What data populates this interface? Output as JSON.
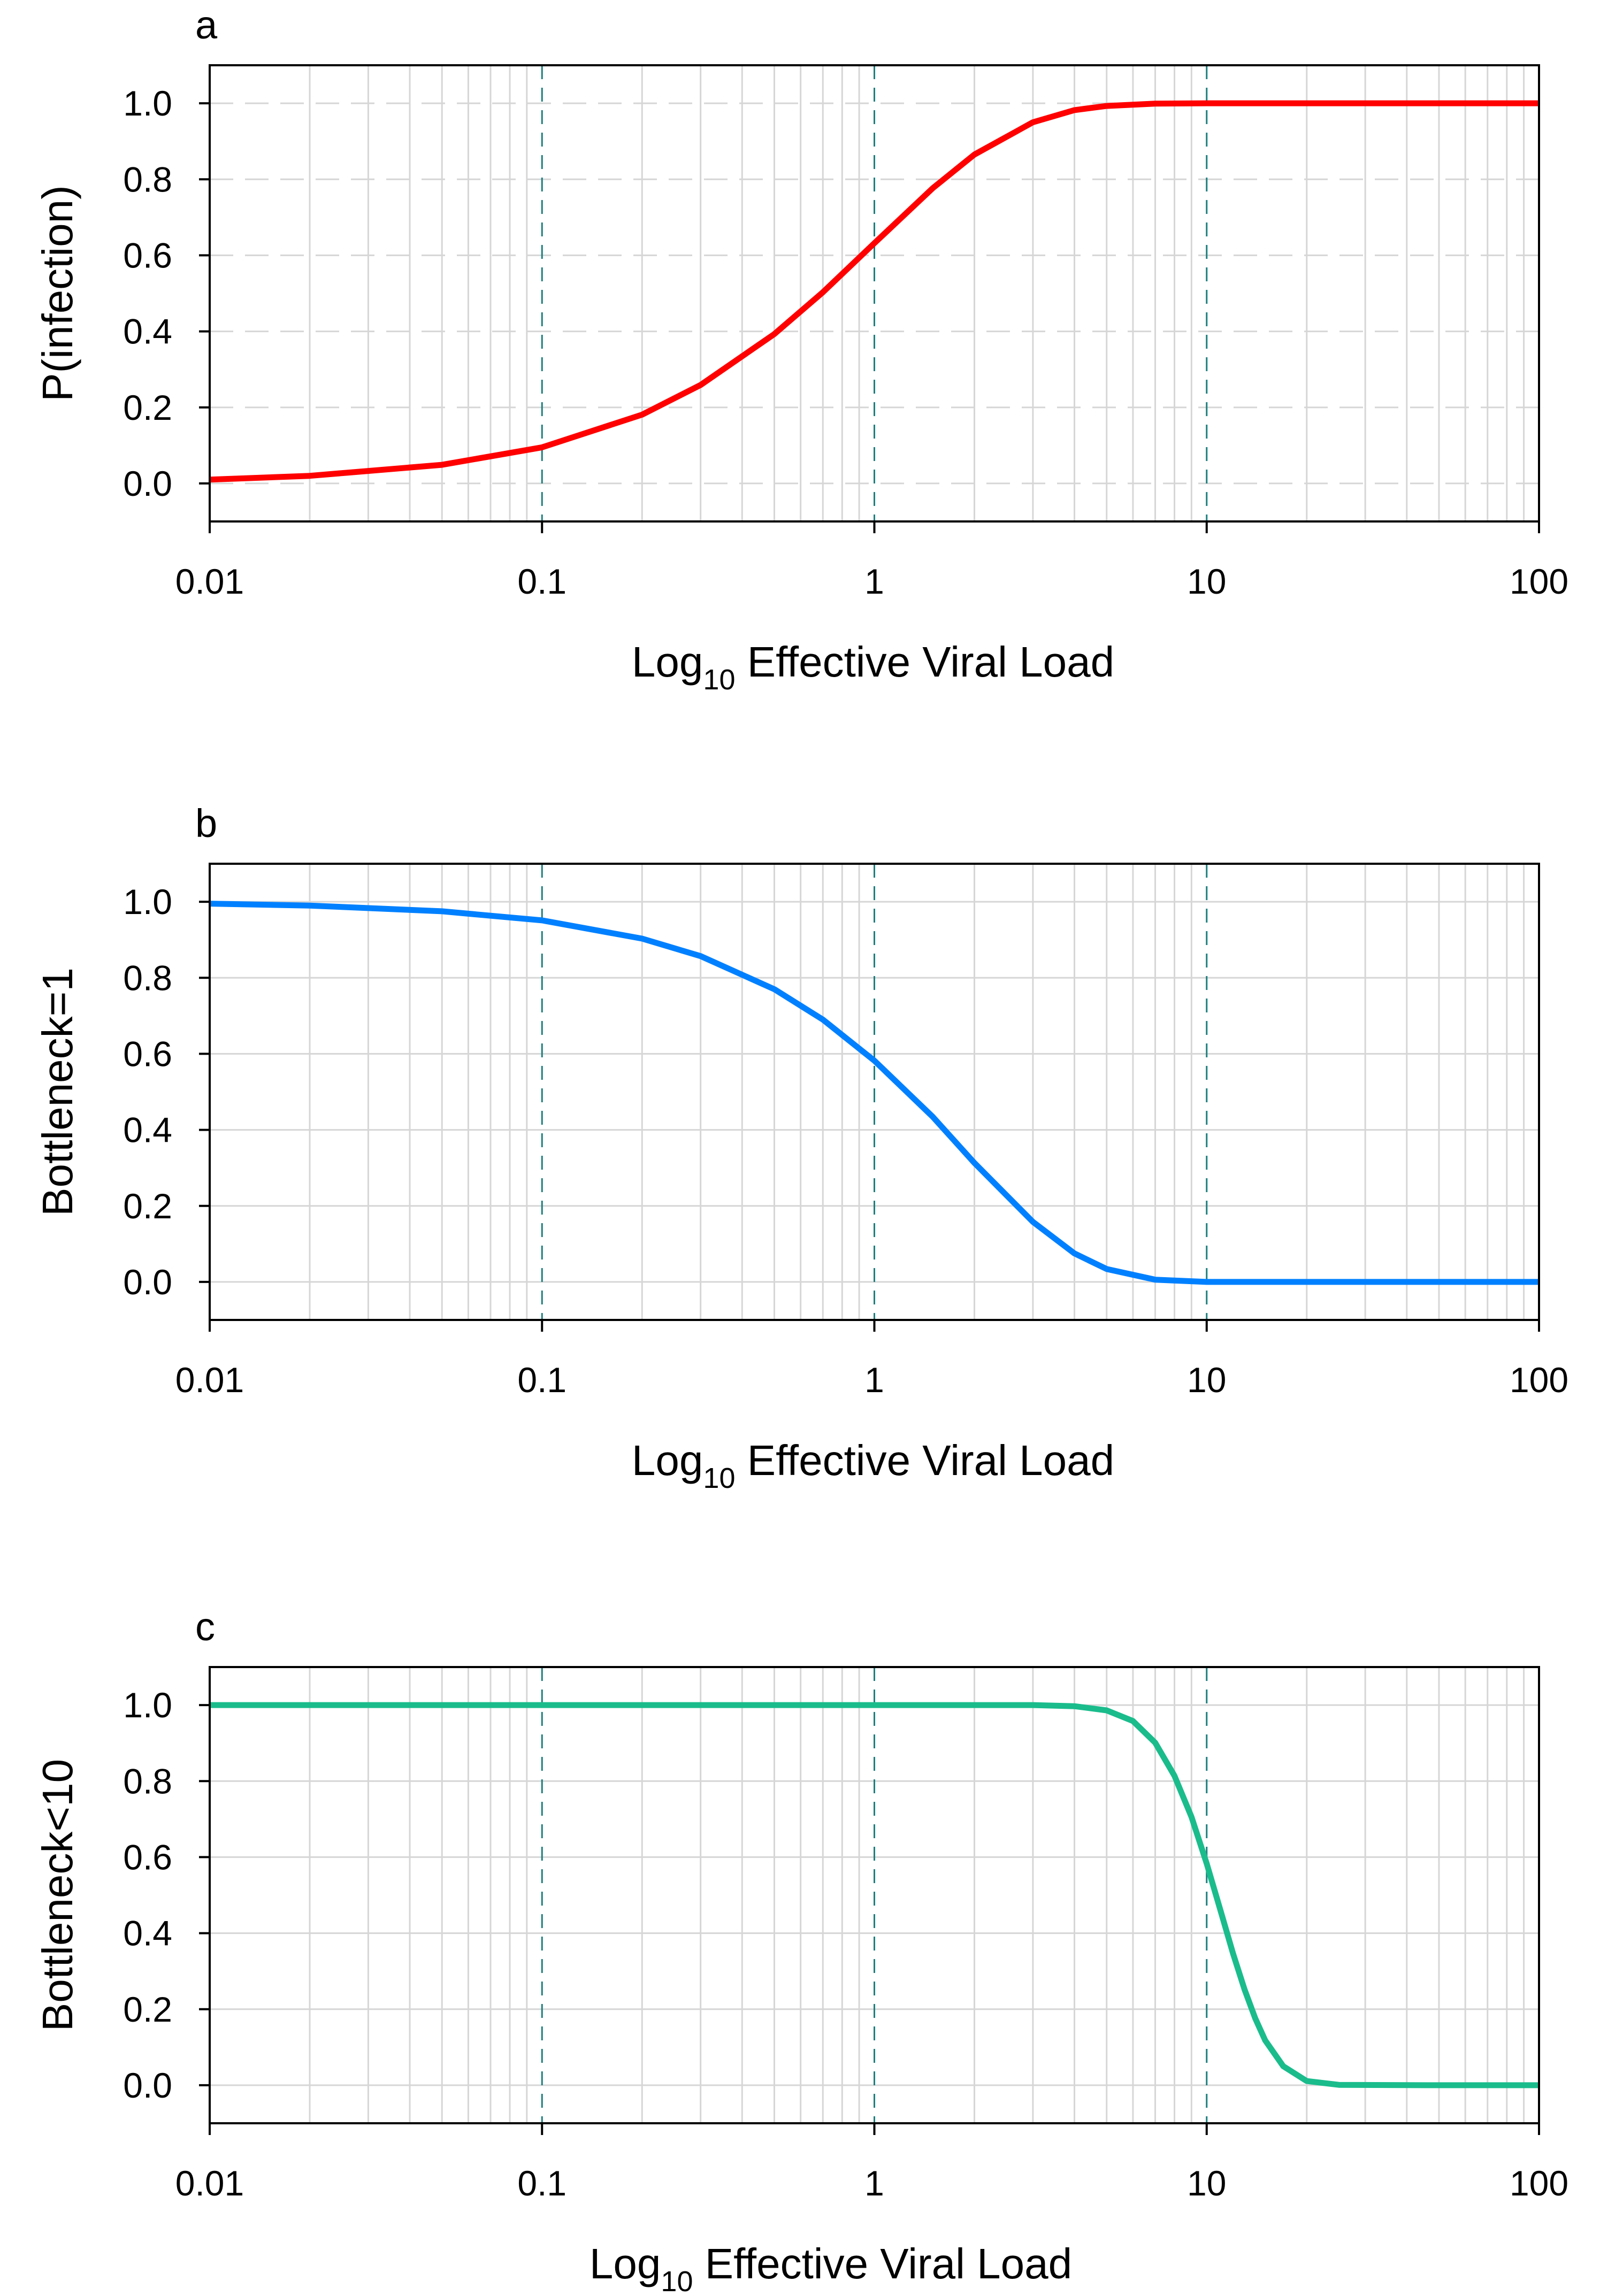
{
  "chart_data": [
    {
      "type": "line",
      "panel_label": "a",
      "xlabel": "Log",
      "xlabel_subscript": "10",
      "xlabel_rest": " Effective Viral Load",
      "ylabel": "P(infection)",
      "xscale": "log",
      "xlim": [
        0.01,
        100
      ],
      "ylim": [
        -0.1,
        1.1
      ],
      "xticks": [
        0.01,
        0.1,
        1,
        10,
        100
      ],
      "xtick_labels": [
        "0.01",
        "0.1",
        "1",
        "10",
        "100"
      ],
      "yticks": [
        0,
        0.2,
        0.4,
        0.6,
        0.8,
        1
      ],
      "ytick_labels": [
        "0.0",
        "0.2",
        "0.4",
        "0.6",
        "0.8",
        "1.0"
      ],
      "reference_lines_x": [
        0.1,
        1,
        10
      ],
      "grid": "on",
      "series": [
        {
          "name": "P(infection)",
          "color": "#ff0000",
          "x": [
            0.01,
            0.02,
            0.05,
            0.1,
            0.2,
            0.3,
            0.5,
            0.7,
            1,
            1.5,
            2,
            3,
            4,
            5,
            7,
            10,
            20,
            50,
            100
          ],
          "y": [
            0.01,
            0.02,
            0.049,
            0.095,
            0.181,
            0.259,
            0.393,
            0.503,
            0.632,
            0.777,
            0.865,
            0.95,
            0.982,
            0.993,
            0.999,
            1.0,
            1.0,
            1.0,
            1.0
          ]
        }
      ]
    },
    {
      "type": "line",
      "panel_label": "b",
      "xlabel": "Log",
      "xlabel_subscript": "10",
      "xlabel_rest": " Effective Viral Load",
      "ylabel": "Bottleneck=1",
      "xscale": "log",
      "xlim": [
        0.01,
        100
      ],
      "ylim": [
        -0.1,
        1.1
      ],
      "xticks": [
        0.01,
        0.1,
        1,
        10,
        100
      ],
      "xtick_labels": [
        "0.01",
        "0.1",
        "1",
        "10",
        "100"
      ],
      "yticks": [
        0,
        0.2,
        0.4,
        0.6,
        0.8,
        1
      ],
      "ytick_labels": [
        "0.0",
        "0.2",
        "0.4",
        "0.6",
        "0.8",
        "1.0"
      ],
      "reference_lines_x": [
        0.1,
        1,
        10
      ],
      "grid": "on",
      "series": [
        {
          "name": "Bottleneck=1",
          "color": "#0080ff",
          "x": [
            0.01,
            0.02,
            0.05,
            0.1,
            0.2,
            0.3,
            0.5,
            0.7,
            1,
            1.5,
            2,
            3,
            4,
            5,
            7,
            10,
            20,
            50,
            100
          ],
          "y": [
            0.995,
            0.99,
            0.975,
            0.951,
            0.903,
            0.857,
            0.77,
            0.69,
            0.582,
            0.434,
            0.313,
            0.158,
            0.075,
            0.034,
            0.006,
            0.0,
            0.0,
            0.0,
            0.0
          ]
        }
      ]
    },
    {
      "type": "line",
      "panel_label": "c",
      "xlabel": "Log",
      "xlabel_subscript": "10",
      "xlabel_rest": " Effective Viral Load",
      "ylabel": "Bottleneck<10",
      "xscale": "log",
      "xlim": [
        0.01,
        100
      ],
      "ylim": [
        -0.1,
        1.1
      ],
      "xticks": [
        0.01,
        0.1,
        1,
        10,
        100
      ],
      "xtick_labels": [
        "0.01",
        "0.1",
        "1",
        "10",
        "100"
      ],
      "yticks": [
        0,
        0.2,
        0.4,
        0.6,
        0.8,
        1
      ],
      "ytick_labels": [
        "0.0",
        "0.2",
        "0.4",
        "0.6",
        "0.8",
        "1.0"
      ],
      "reference_lines_x": [
        0.1,
        1,
        10
      ],
      "grid": "on",
      "series": [
        {
          "name": "Bottleneck<10",
          "color": "#1abc8c",
          "x": [
            0.01,
            0.1,
            1,
            2,
            3,
            4,
            5,
            6,
            7,
            8,
            9,
            10,
            11,
            12,
            13,
            14,
            15,
            17,
            20,
            25,
            50,
            100
          ],
          "y": [
            1.0,
            1.0,
            1.0,
            1.0,
            1.0,
            0.997,
            0.986,
            0.958,
            0.901,
            0.814,
            0.706,
            0.583,
            0.46,
            0.347,
            0.252,
            0.176,
            0.118,
            0.05,
            0.011,
            0.001,
            0.0,
            0.0
          ]
        }
      ]
    }
  ]
}
